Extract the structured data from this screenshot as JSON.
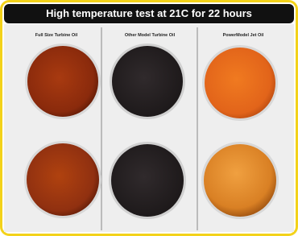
{
  "header": {
    "title": "High temperature test at 21C for 22 hours"
  },
  "columns": [
    {
      "label": "Full Size Turbine Oil"
    },
    {
      "label": "Other Model Turbine Oil"
    },
    {
      "label": "PowerModel Jet Oil"
    }
  ]
}
